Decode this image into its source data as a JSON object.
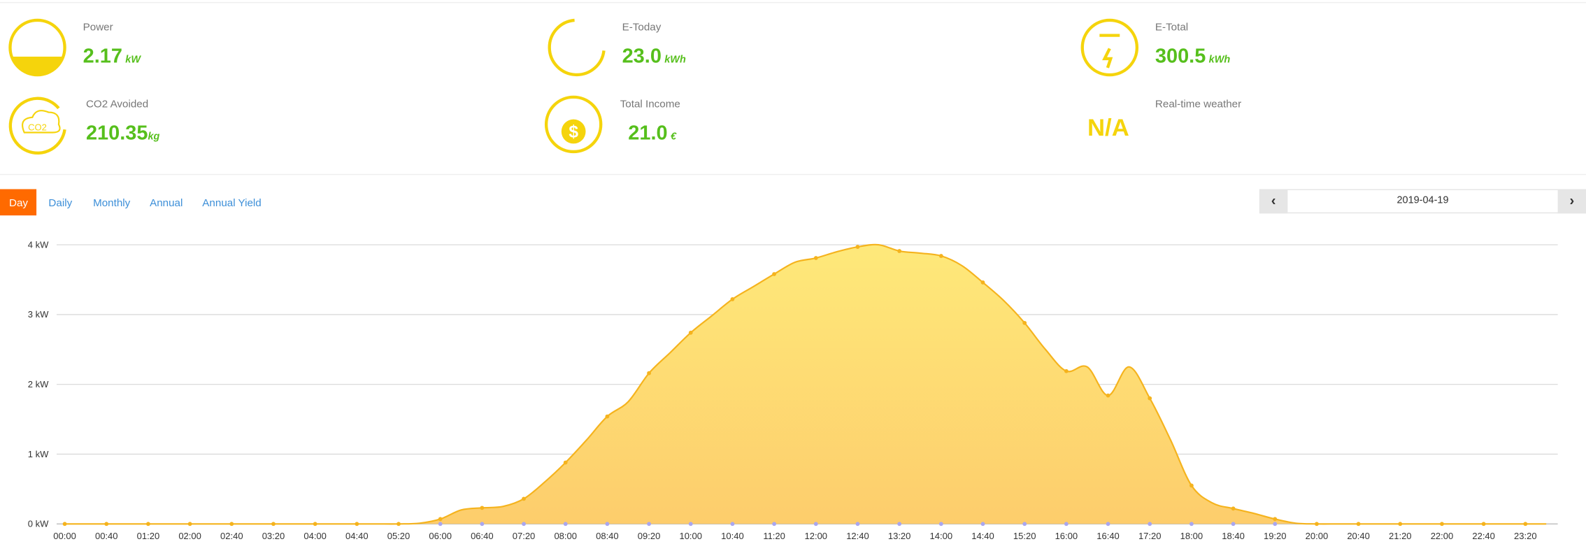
{
  "stats": [
    {
      "label": "Power",
      "value": "2.17",
      "unit": "kW"
    },
    {
      "label": "E-Today",
      "value": "23.0",
      "unit": "kWh"
    },
    {
      "label": "E-Total",
      "value": "300.5",
      "unit": "kWh"
    },
    {
      "label": "CO2 Avoided",
      "value": "210.35",
      "unit": "kg"
    },
    {
      "label": "Total Income",
      "value": "21.0",
      "unit": "€"
    }
  ],
  "weather": {
    "label": "Real-time weather",
    "value": "N/A"
  },
  "co2_icon_text": "CO2",
  "tabs": [
    "Day",
    "Daily",
    "Monthly",
    "Annual",
    "Annual Yield"
  ],
  "date": "2019-04-19",
  "chart_data": {
    "type": "area",
    "categories": [
      "00:00",
      null,
      "00:40",
      null,
      "01:20",
      null,
      "02:00",
      null,
      "02:40",
      null,
      "03:20",
      null,
      "04:00",
      null,
      "04:40",
      null,
      "05:20",
      null,
      "06:00",
      null,
      "06:40",
      null,
      "07:20",
      null,
      "08:00",
      null,
      "08:40",
      null,
      "09:20",
      null,
      "10:00",
      null,
      "10:40",
      null,
      "11:20",
      null,
      "12:00",
      null,
      "12:40",
      null,
      "13:20",
      null,
      "14:00",
      null,
      "14:40",
      null,
      "15:20",
      null,
      "16:00",
      null,
      "16:40",
      null,
      "17:20",
      null,
      "18:00",
      null,
      "18:40",
      null,
      "19:20",
      null,
      "20:00",
      null,
      "20:40",
      null,
      "21:20",
      null,
      "22:00",
      null,
      "22:40",
      null,
      "23:20",
      null
    ],
    "series": [
      {
        "color": "#f5b31d",
        "values": [
          0,
          0,
          0,
          0,
          0,
          0,
          0,
          0,
          0,
          0,
          0,
          0,
          0,
          0,
          0,
          0,
          0,
          0.01,
          0.07,
          0.2,
          0.23,
          0.25,
          0.36,
          0.6,
          0.88,
          1.2,
          1.54,
          1.75,
          2.16,
          2.45,
          2.74,
          2.98,
          3.22,
          3.4,
          3.58,
          3.75,
          3.81,
          3.9,
          3.97,
          4.0,
          3.91,
          3.88,
          3.84,
          3.7,
          3.46,
          3.2,
          2.88,
          2.5,
          2.19,
          2.25,
          1.84,
          2.25,
          1.8,
          1.2,
          0.55,
          0.3,
          0.22,
          0.15,
          0.07,
          0.01,
          0,
          0,
          0,
          0,
          0,
          0,
          0,
          0,
          0,
          0,
          0,
          0
        ]
      },
      {
        "color": "#a9a6f0",
        "values": [
          null,
          null,
          null,
          null,
          null,
          null,
          null,
          null,
          null,
          null,
          null,
          null,
          null,
          null,
          null,
          null,
          null,
          null,
          0,
          null,
          0,
          null,
          0,
          null,
          0,
          null,
          0,
          null,
          0,
          null,
          0,
          null,
          0,
          null,
          0,
          null,
          0,
          null,
          0,
          null,
          0,
          null,
          0,
          null,
          0,
          null,
          0,
          null,
          0,
          null,
          0,
          null,
          0,
          null,
          0,
          null,
          0,
          null,
          0,
          null,
          null,
          null,
          null,
          null,
          null,
          null,
          null,
          null,
          null,
          null,
          null,
          null
        ]
      }
    ],
    "ylim": [
      0,
      4
    ],
    "yticks": [
      {
        "value": 0,
        "label": "0 kW"
      },
      {
        "value": 1,
        "label": "1 kW"
      },
      {
        "value": 2,
        "label": "2 kW"
      },
      {
        "value": 3,
        "label": "3 kW"
      },
      {
        "value": 4,
        "label": "4 kW"
      }
    ],
    "grid": true
  }
}
